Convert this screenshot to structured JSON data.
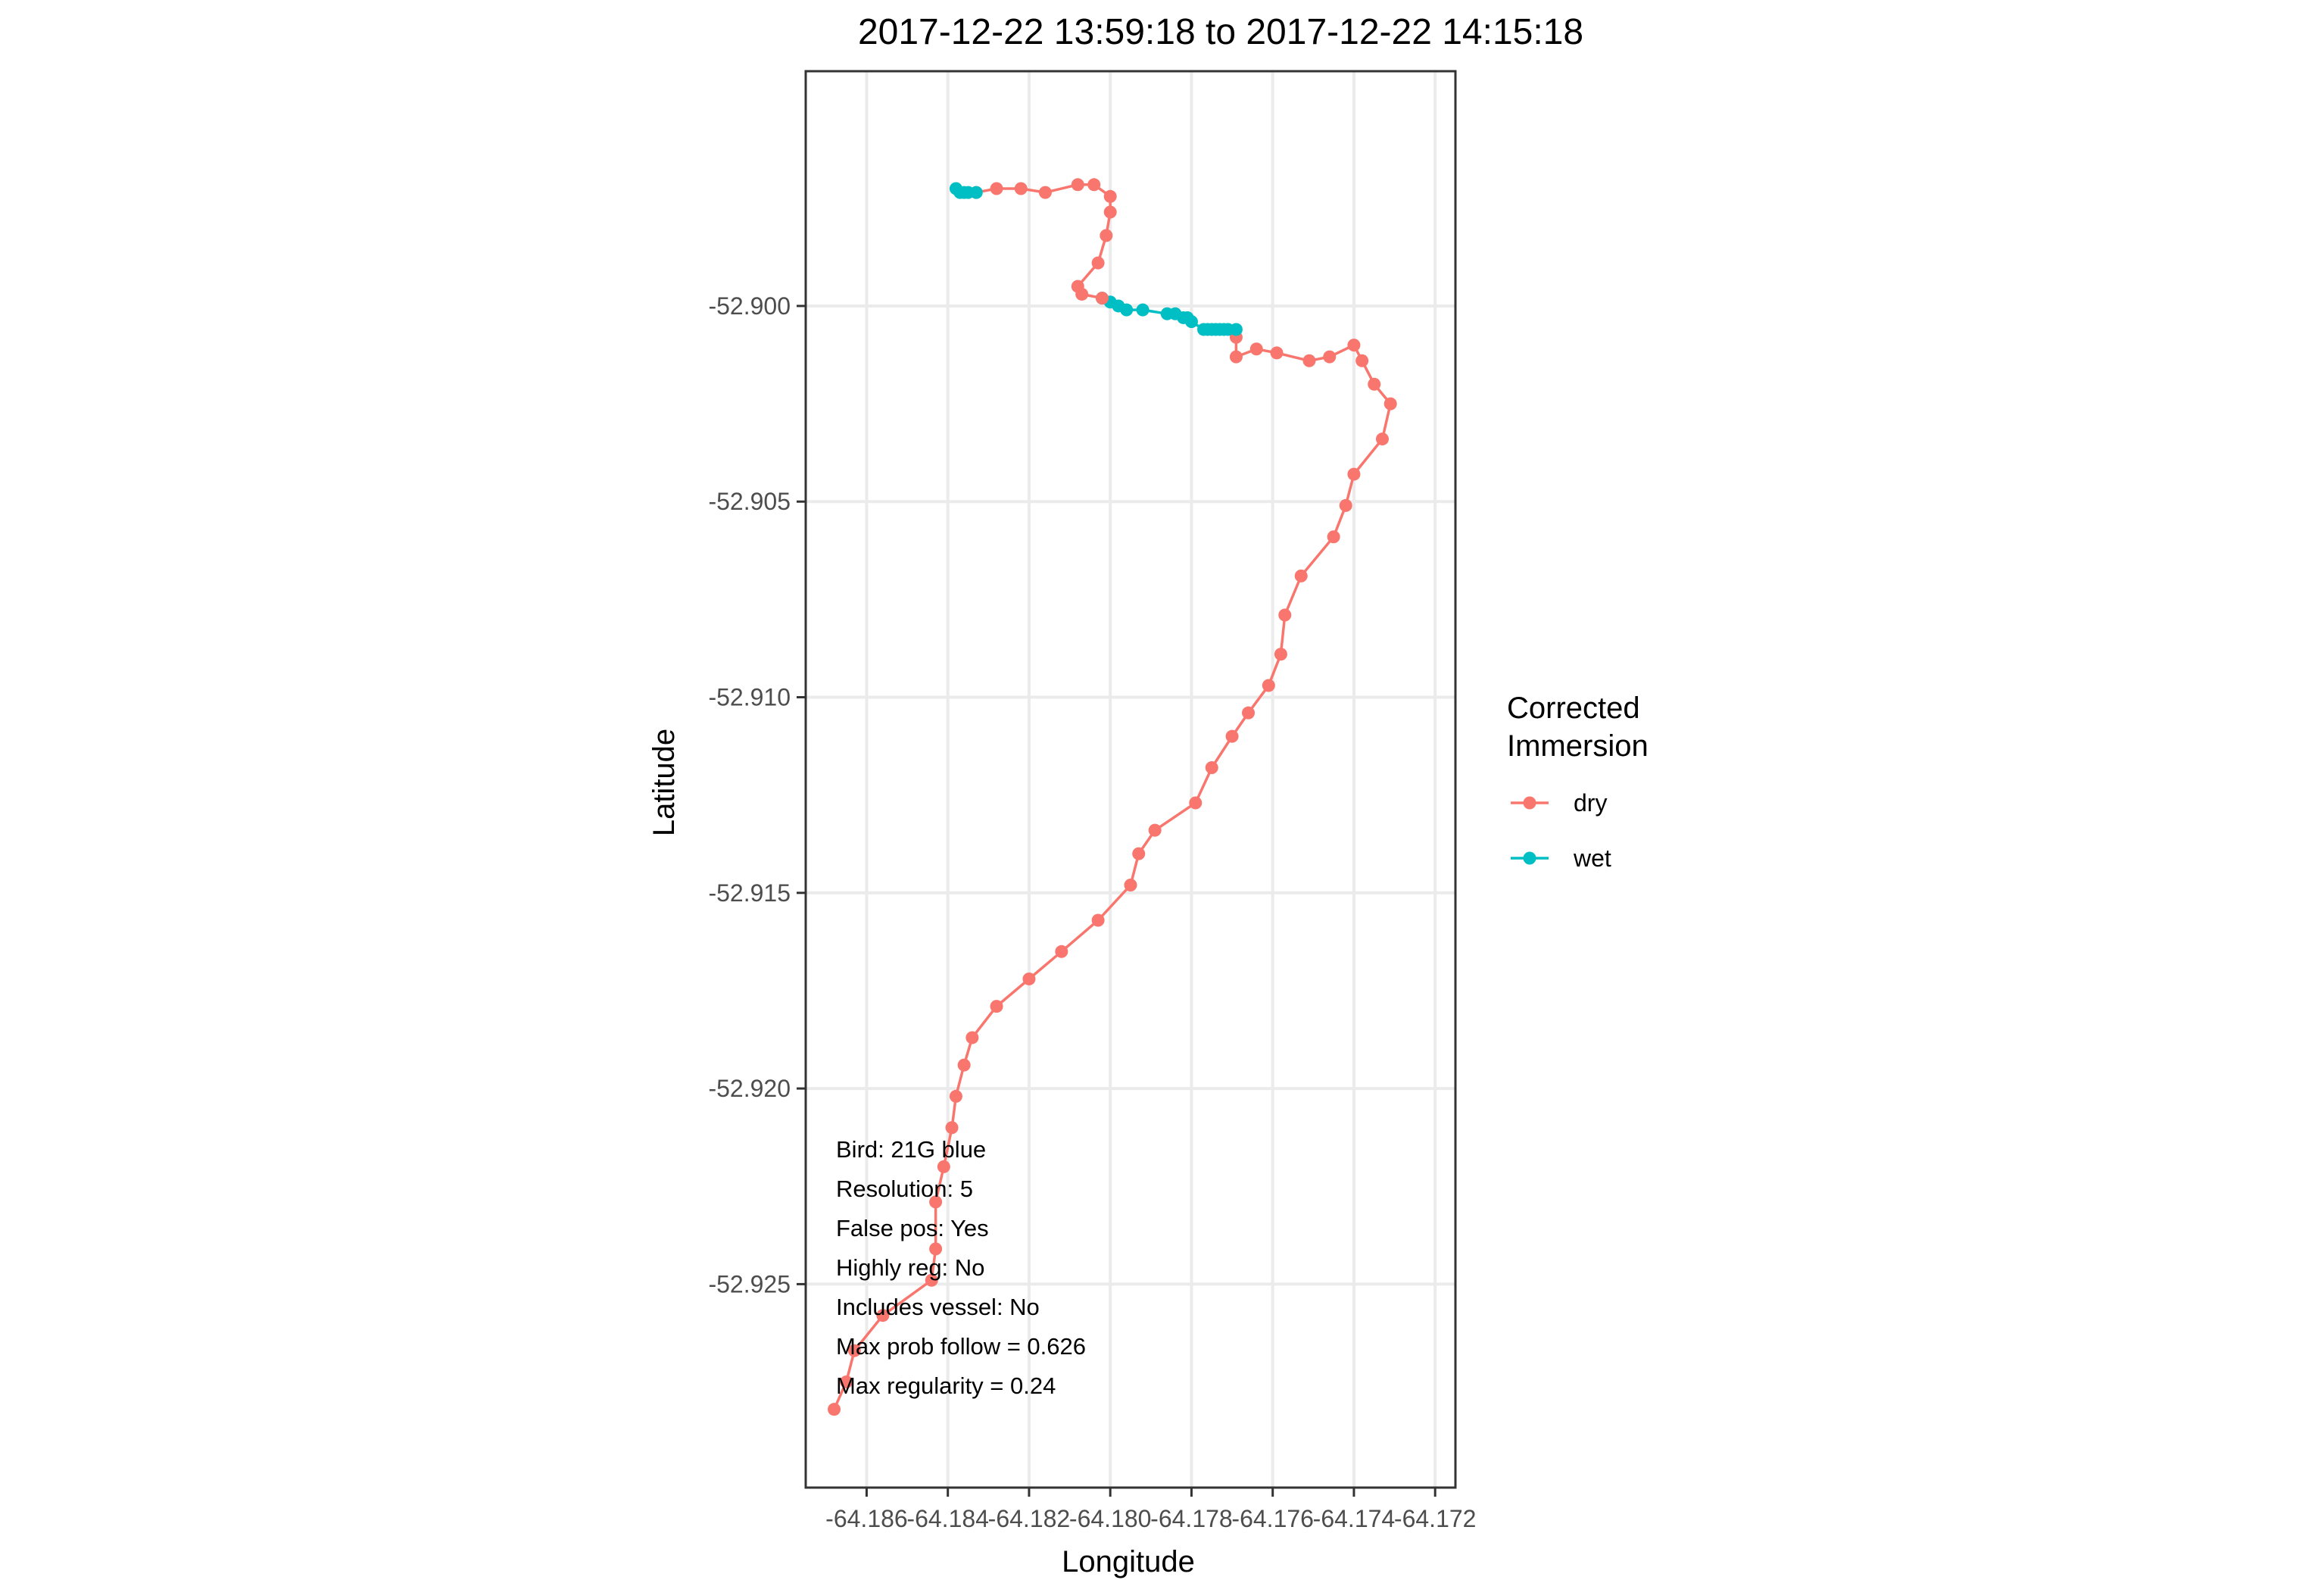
{
  "chart_data": {
    "type": "line",
    "title": "2017-12-22 13:59:18 to 2017-12-22 14:15:18",
    "xlabel": "Longitude",
    "ylabel": "Latitude",
    "xlim": [
      -64.1875,
      -64.1715
    ],
    "ylim": [
      -52.9302,
      -52.894
    ],
    "x_ticks": [
      -64.186,
      -64.184,
      -64.182,
      -64.18,
      -64.178,
      -64.176,
      -64.174,
      -64.172
    ],
    "x_tick_labels": [
      "-64.186",
      "-64.184",
      "-64.182",
      "-64.180",
      "-64.178",
      "-64.176",
      "-64.174",
      "-64.172"
    ],
    "y_ticks": [
      -52.9,
      -52.905,
      -52.91,
      -52.915,
      -52.92,
      -52.925
    ],
    "y_tick_labels": [
      "-52.900",
      "-52.905",
      "-52.910",
      "-52.915",
      "-52.920",
      "-52.925"
    ],
    "grid": true,
    "legend": {
      "title": "Corrected\nImmersion",
      "position": "right",
      "entries": [
        {
          "label": "dry",
          "color": "#F8766D"
        },
        {
          "label": "wet",
          "color": "#00BFC4"
        }
      ]
    },
    "series": [
      {
        "name": "dry",
        "color": "#F8766D",
        "points": [
          [
            -64.1868,
            -52.9282
          ],
          [
            -64.1865,
            -52.9275
          ],
          [
            -64.1863,
            -52.9267
          ],
          [
            -64.1856,
            -52.9258
          ],
          [
            -64.1844,
            -52.9249
          ],
          [
            -64.1843,
            -52.9241
          ],
          [
            -64.1843,
            -52.9229
          ],
          [
            -64.1841,
            -52.922
          ],
          [
            -64.1839,
            -52.921
          ],
          [
            -64.1838,
            -52.9202
          ],
          [
            -64.1836,
            -52.9194
          ],
          [
            -64.1834,
            -52.9187
          ],
          [
            -64.1828,
            -52.9179
          ],
          [
            -64.182,
            -52.9172
          ],
          [
            -64.1812,
            -52.9165
          ],
          [
            -64.1803,
            -52.9157
          ],
          [
            -64.1795,
            -52.9148
          ],
          [
            -64.1793,
            -52.914
          ],
          [
            -64.1789,
            -52.9134
          ],
          [
            -64.1779,
            -52.9127
          ],
          [
            -64.1775,
            -52.9118
          ],
          [
            -64.177,
            -52.911
          ],
          [
            -64.1766,
            -52.9104
          ],
          [
            -64.1761,
            -52.9097
          ],
          [
            -64.1758,
            -52.9089
          ],
          [
            -64.1757,
            -52.9079
          ],
          [
            -64.1753,
            -52.9069
          ],
          [
            -64.1745,
            -52.9059
          ],
          [
            -64.1742,
            -52.9051
          ],
          [
            -64.174,
            -52.9043
          ],
          [
            -64.1733,
            -52.9034
          ],
          [
            -64.1731,
            -52.9025
          ],
          [
            -64.1735,
            -52.902
          ],
          [
            -64.1738,
            -52.9014
          ],
          [
            -64.174,
            -52.901
          ],
          [
            -64.1746,
            -52.9013
          ],
          [
            -64.1751,
            -52.9014
          ],
          [
            -64.1759,
            -52.9012
          ],
          [
            -64.1764,
            -52.9011
          ],
          [
            -64.1769,
            -52.9013
          ],
          [
            -64.1769,
            -52.9008
          ]
        ]
      },
      {
        "name": "wet",
        "color": "#00BFC4",
        "points": [
          [
            -64.1769,
            -52.9006
          ],
          [
            -64.1771,
            -52.9006
          ],
          [
            -64.1772,
            -52.9006
          ],
          [
            -64.1773,
            -52.9006
          ],
          [
            -64.1774,
            -52.9006
          ],
          [
            -64.1775,
            -52.9006
          ],
          [
            -64.1776,
            -52.9006
          ],
          [
            -64.1777,
            -52.9006
          ],
          [
            -64.178,
            -52.9004
          ],
          [
            -64.1781,
            -52.9003
          ],
          [
            -64.1782,
            -52.9003
          ],
          [
            -64.1784,
            -52.9002
          ],
          [
            -64.1786,
            -52.9002
          ],
          [
            -64.1792,
            -52.9001
          ],
          [
            -64.1796,
            -52.9001
          ],
          [
            -64.1798,
            -52.9
          ],
          [
            -64.18,
            -52.8999
          ],
          [
            -64.1802,
            -52.8998
          ]
        ]
      },
      {
        "name": "dry",
        "color": "#F8766D",
        "points": [
          [
            -64.1802,
            -52.8998
          ],
          [
            -64.1807,
            -52.8997
          ],
          [
            -64.1808,
            -52.8995
          ],
          [
            -64.1803,
            -52.8989
          ],
          [
            -64.1801,
            -52.8982
          ],
          [
            -64.18,
            -52.8976
          ],
          [
            -64.18,
            -52.8972
          ],
          [
            -64.1804,
            -52.8969
          ],
          [
            -64.1808,
            -52.8969
          ],
          [
            -64.1816,
            -52.8971
          ],
          [
            -64.1822,
            -52.897
          ],
          [
            -64.1828,
            -52.897
          ],
          [
            -64.1833,
            -52.8971
          ]
        ]
      },
      {
        "name": "wet",
        "color": "#00BFC4",
        "points": [
          [
            -64.1833,
            -52.8971
          ],
          [
            -64.1835,
            -52.8971
          ],
          [
            -64.1836,
            -52.8971
          ],
          [
            -64.1837,
            -52.8971
          ],
          [
            -64.1838,
            -52.897
          ]
        ]
      }
    ],
    "annotations": [
      "Bird: 21G blue",
      "Resolution: 5",
      "False pos: Yes",
      "Highly reg: No",
      "Includes vessel: No",
      "Max prob follow = 0.626",
      "Max regularity = 0.24"
    ]
  }
}
